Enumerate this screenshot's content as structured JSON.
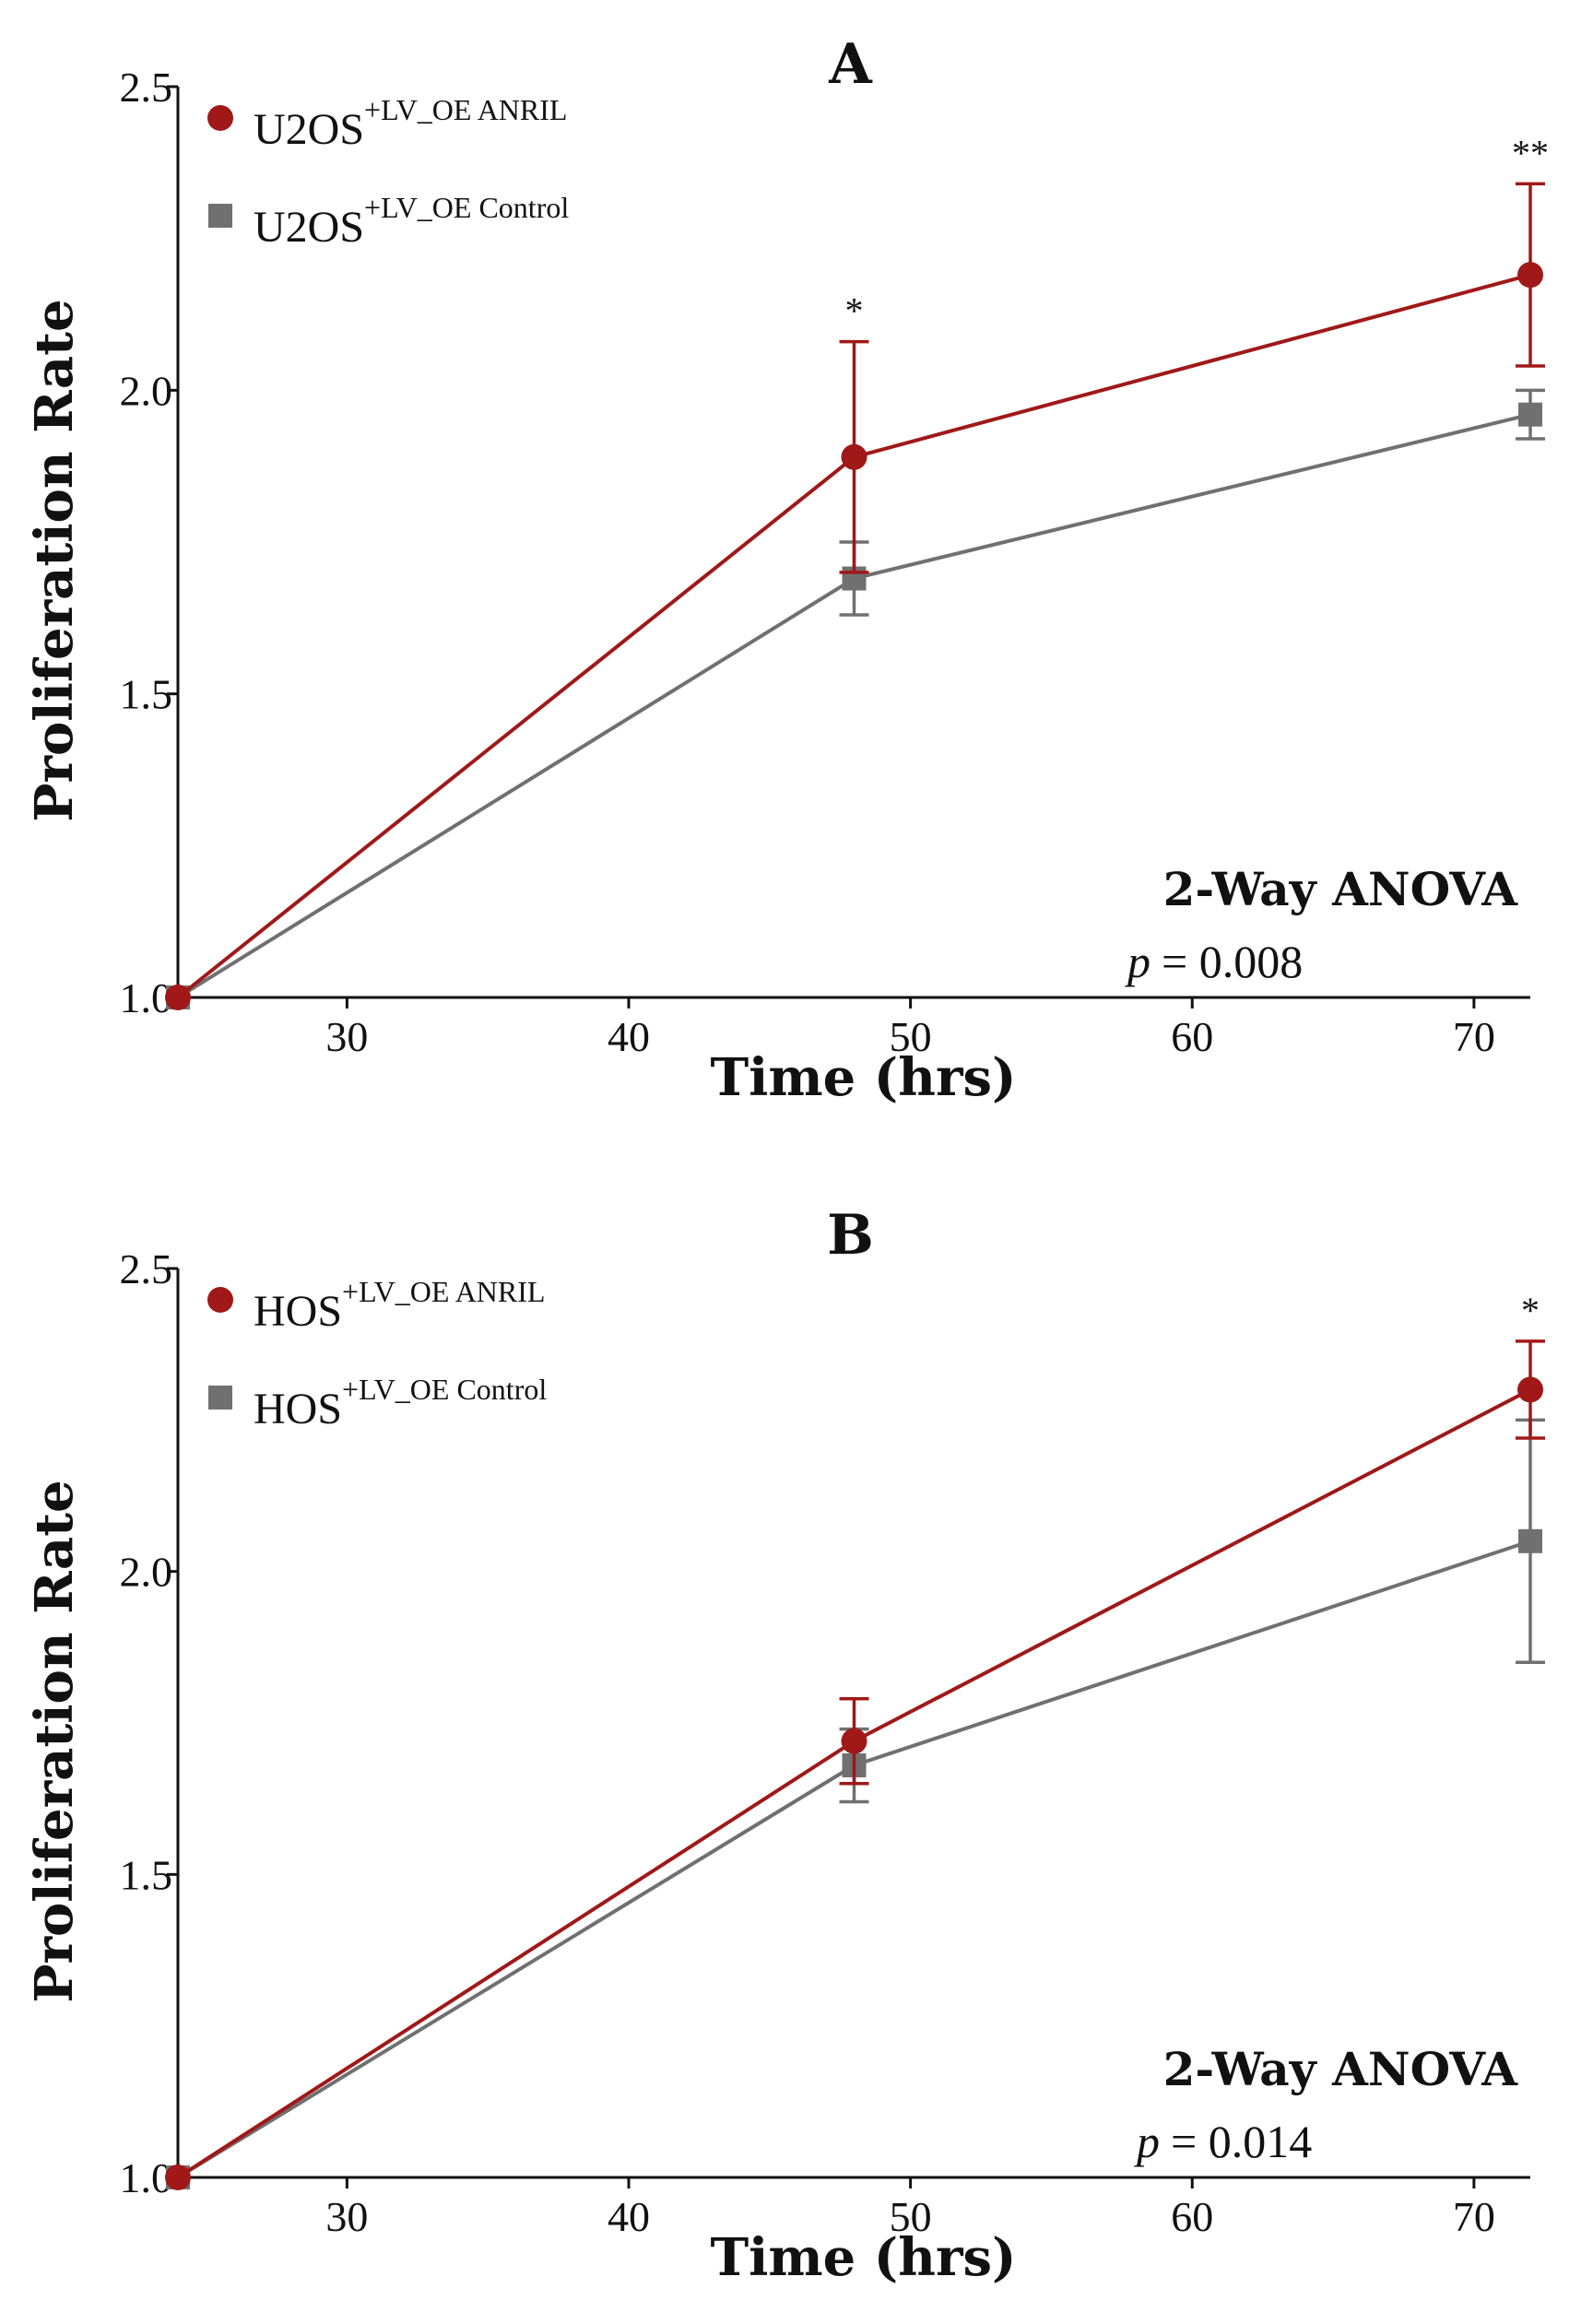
{
  "colors": {
    "anril": "#A01818",
    "control": "#707070",
    "axis": "#111111"
  },
  "chart_data": [
    {
      "type": "line",
      "panel_label": "A",
      "xlabel": "Time (hrs)",
      "ylabel": "Proliferation Rate",
      "xlim": [
        24,
        72
      ],
      "ylim": [
        1.0,
        2.5
      ],
      "xticks": [
        30,
        40,
        50,
        60,
        70
      ],
      "xtick_labels": [
        "30",
        "40",
        "50",
        "60",
        "70"
      ],
      "yticks": [
        1.0,
        1.5,
        2.0,
        2.5
      ],
      "ytick_labels": [
        "1.0",
        "1.5",
        "2.0",
        "2.5"
      ],
      "legend_position": "top-left",
      "series": [
        {
          "name": "U2OS+LV_OE ANRIL",
          "legend_base": "U2OS",
          "legend_sup": "+LV_OE ANRIL",
          "marker": "circle",
          "color": "#A01818",
          "x": [
            24,
            48,
            72
          ],
          "y": [
            1.0,
            1.89,
            2.19
          ],
          "err": [
            0,
            0.19,
            0.15
          ]
        },
        {
          "name": "U2OS+LV_OE Control",
          "legend_base": "U2OS",
          "legend_sup": "+LV_OE Control",
          "marker": "square",
          "color": "#707070",
          "x": [
            24,
            48,
            72
          ],
          "y": [
            1.0,
            1.69,
            1.96
          ],
          "err": [
            0,
            0.06,
            0.04
          ]
        }
      ],
      "annotations": [
        {
          "x": 48,
          "text": "*"
        },
        {
          "x": 72,
          "text": "**"
        }
      ],
      "stats": {
        "title": "2-Way ANOVA",
        "p_symbol": "p",
        "p_value": "= 0.008"
      }
    },
    {
      "type": "line",
      "panel_label": "B",
      "xlabel": "Time (hrs)",
      "ylabel": "Proliferation Rate",
      "xlim": [
        24,
        72
      ],
      "ylim": [
        1.0,
        2.5
      ],
      "xticks": [
        30,
        40,
        50,
        60,
        70
      ],
      "xtick_labels": [
        "30",
        "40",
        "50",
        "60",
        "70"
      ],
      "yticks": [
        1.0,
        1.5,
        2.0,
        2.5
      ],
      "ytick_labels": [
        "1.0",
        "1.5",
        "2.0",
        "2.5"
      ],
      "legend_position": "top-left",
      "series": [
        {
          "name": "HOS+LV_OE ANRIL",
          "legend_base": "HOS",
          "legend_sup": "+LV_OE ANRIL",
          "marker": "circle",
          "color": "#A01818",
          "x": [
            24,
            48,
            72
          ],
          "y": [
            1.0,
            1.72,
            2.3
          ],
          "err": [
            0,
            0.07,
            0.08
          ]
        },
        {
          "name": "HOS+LV_OE Control",
          "legend_base": "HOS",
          "legend_sup": "+LV_OE Control",
          "marker": "square",
          "color": "#707070",
          "x": [
            24,
            48,
            72
          ],
          "y": [
            1.0,
            1.68,
            2.05
          ],
          "err": [
            0,
            0.06,
            0.2
          ]
        }
      ],
      "annotations": [
        {
          "x": 72,
          "text": "*"
        }
      ],
      "stats": {
        "title": "2-Way ANOVA",
        "p_symbol": "p",
        "p_value": "= 0.014"
      }
    }
  ]
}
